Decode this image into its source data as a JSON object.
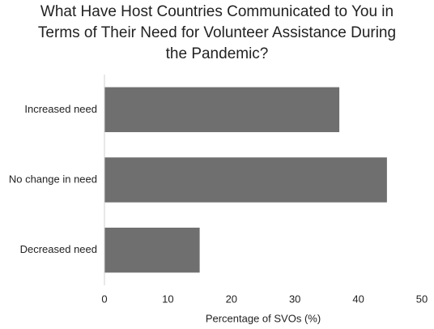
{
  "chart_data": {
    "type": "barh",
    "title": "What Have Host Countries Communicated to You in Terms of Their Need for Volunteer Assistance During the Pandemic?",
    "categories": [
      "Increased need",
      "No change in need",
      "Decreased need"
    ],
    "values": [
      37,
      44.5,
      15
    ],
    "color": "#6f6f6f",
    "x_label": "Percentage of SVOs (%)",
    "xlim": [
      0,
      50
    ],
    "xticks": [
      0,
      10,
      20,
      30,
      40,
      50
    ],
    "grid": false
  }
}
